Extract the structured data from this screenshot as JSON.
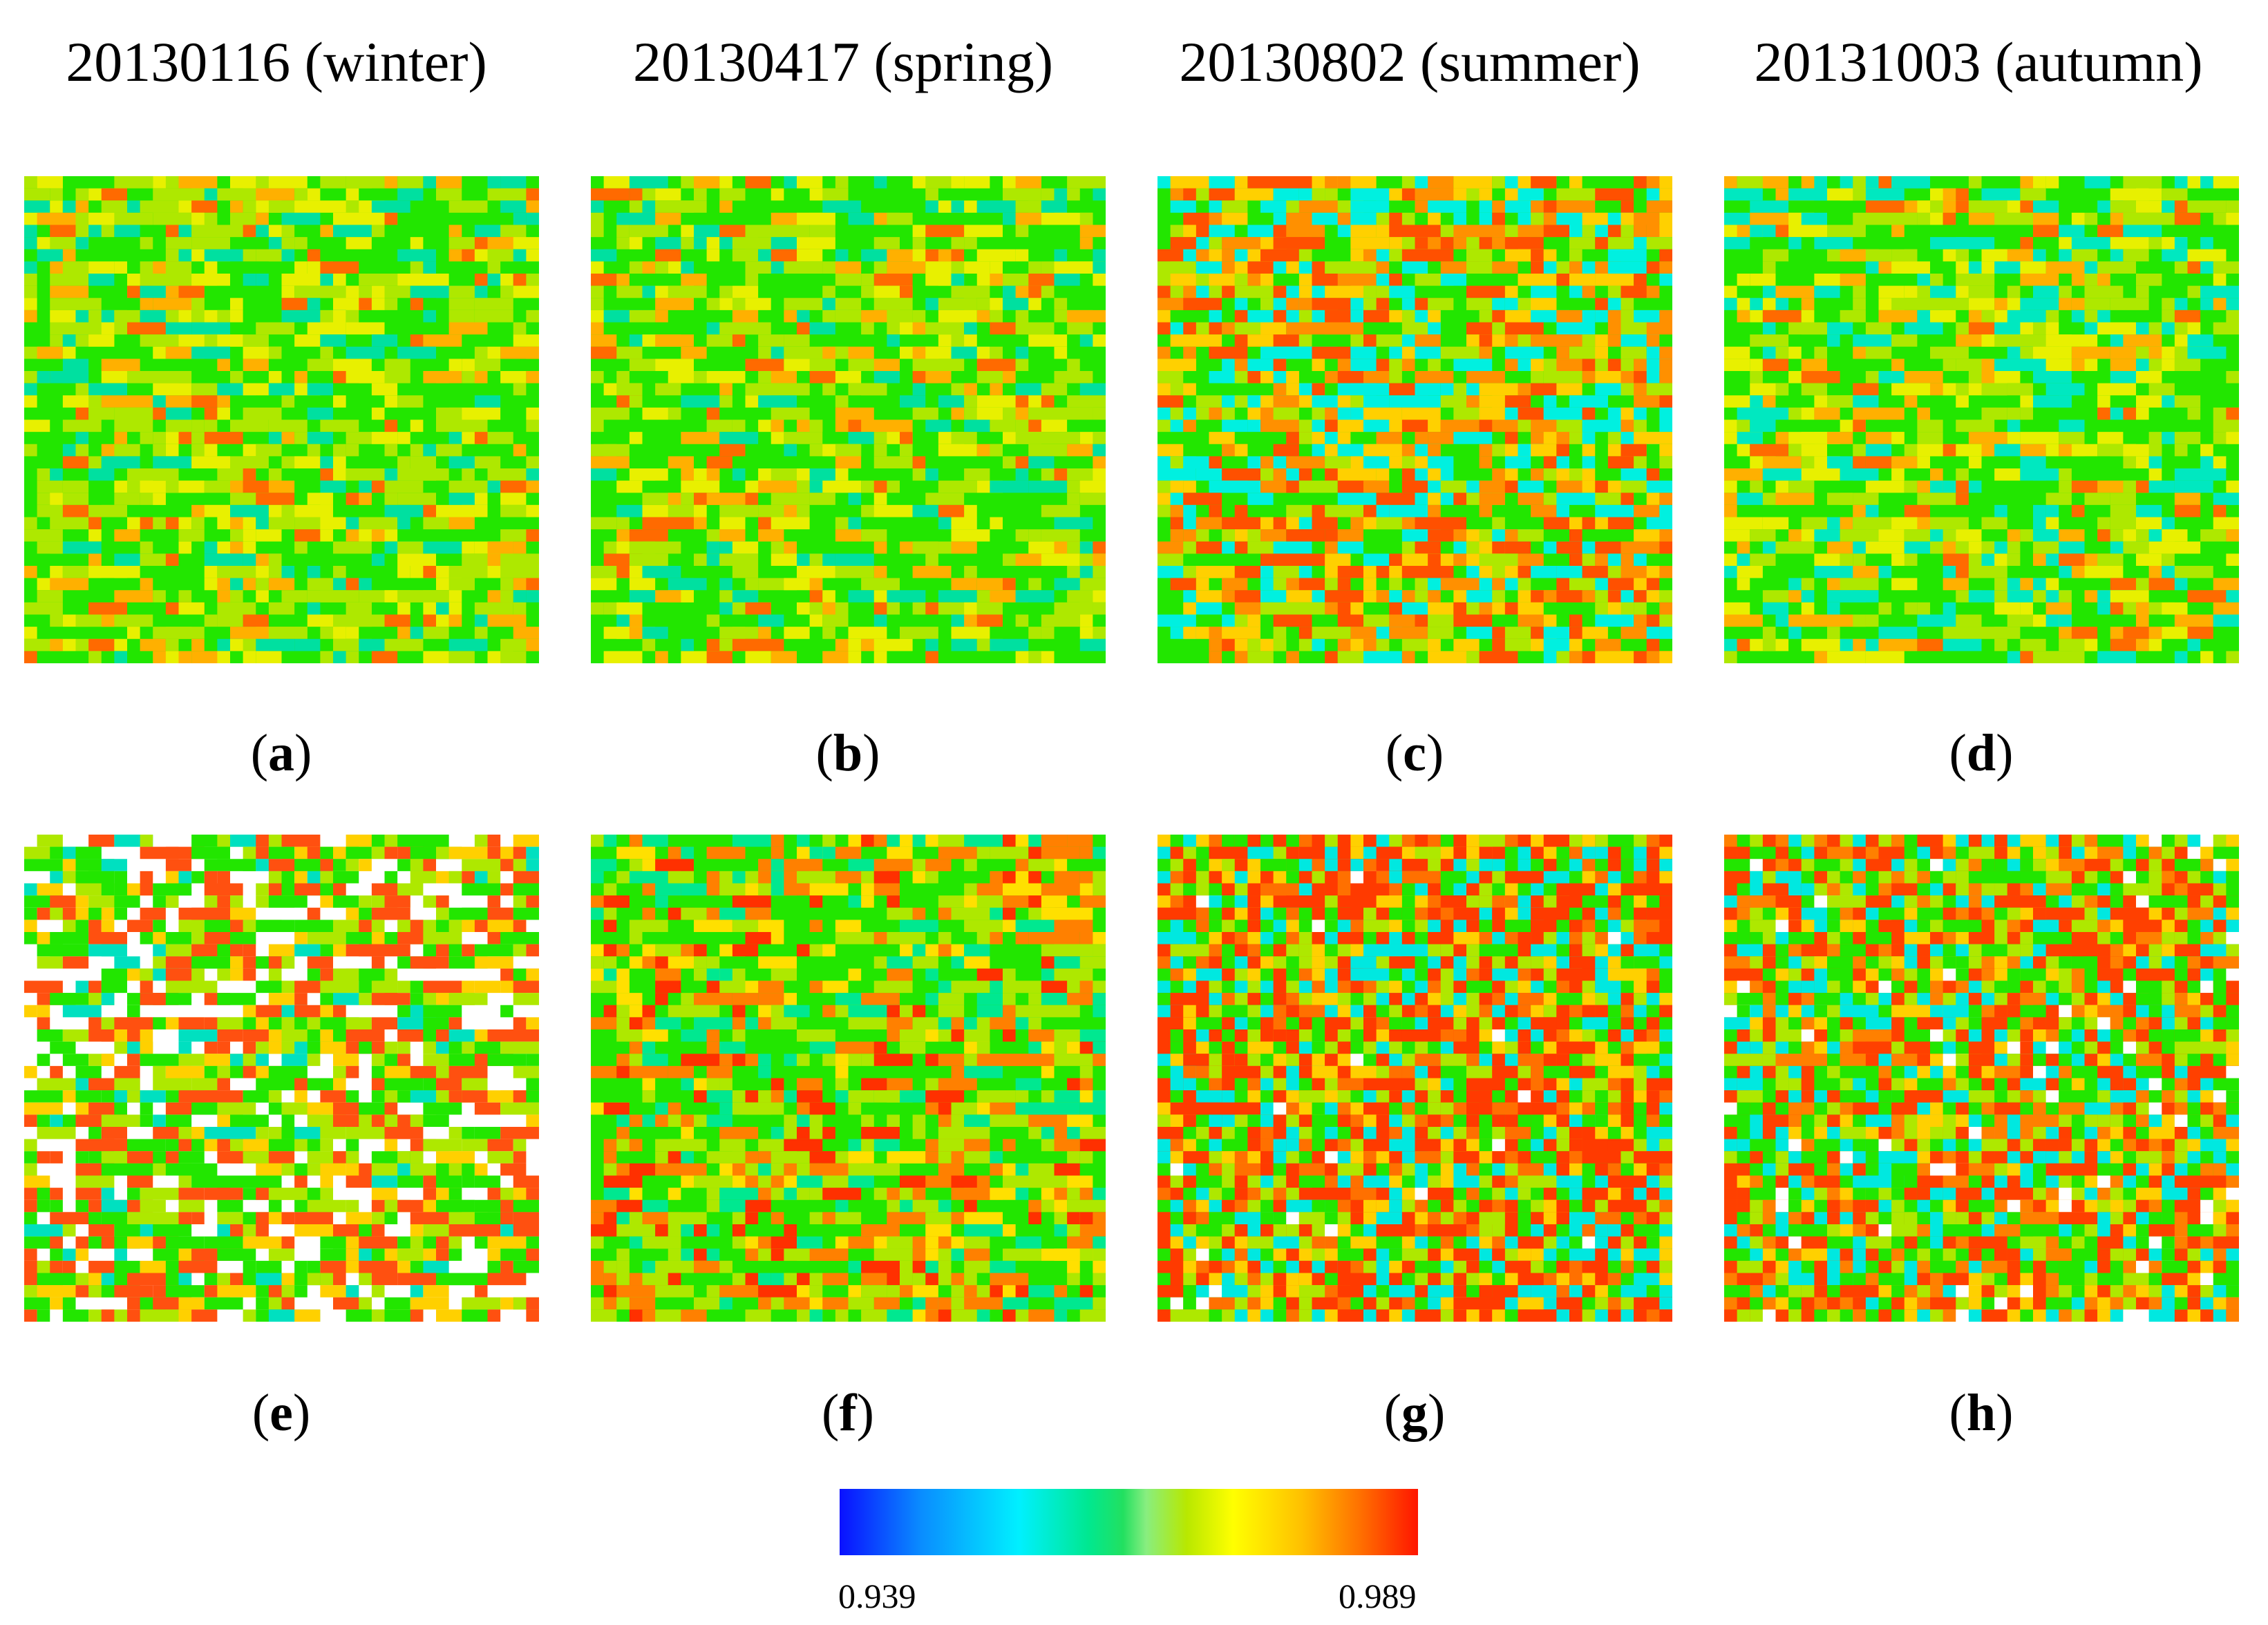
{
  "column_titles": [
    "20130116 (winter)",
    "20130417 (spring)",
    "20130802 (summer)",
    "20131003 (autumn)"
  ],
  "panels": [
    {
      "letter": "a",
      "date": "20130116",
      "season": "winter"
    },
    {
      "letter": "b",
      "date": "20130417",
      "season": "spring"
    },
    {
      "letter": "c",
      "date": "20130802",
      "season": "summer"
    },
    {
      "letter": "d",
      "date": "20131003",
      "season": "autumn"
    },
    {
      "letter": "e",
      "date": "20130116",
      "season": "winter"
    },
    {
      "letter": "f",
      "date": "20130417",
      "season": "spring"
    },
    {
      "letter": "g",
      "date": "20130802",
      "season": "summer"
    },
    {
      "letter": "h",
      "date": "20131003",
      "season": "autumn"
    }
  ],
  "colorbar": {
    "min_label": "0.939",
    "max_label": "0.989",
    "min": 0.939,
    "max": 0.989,
    "colors": [
      "#0a10ff",
      "#00f0ff",
      "#22e060",
      "#ffff00",
      "#ff1500"
    ]
  }
}
